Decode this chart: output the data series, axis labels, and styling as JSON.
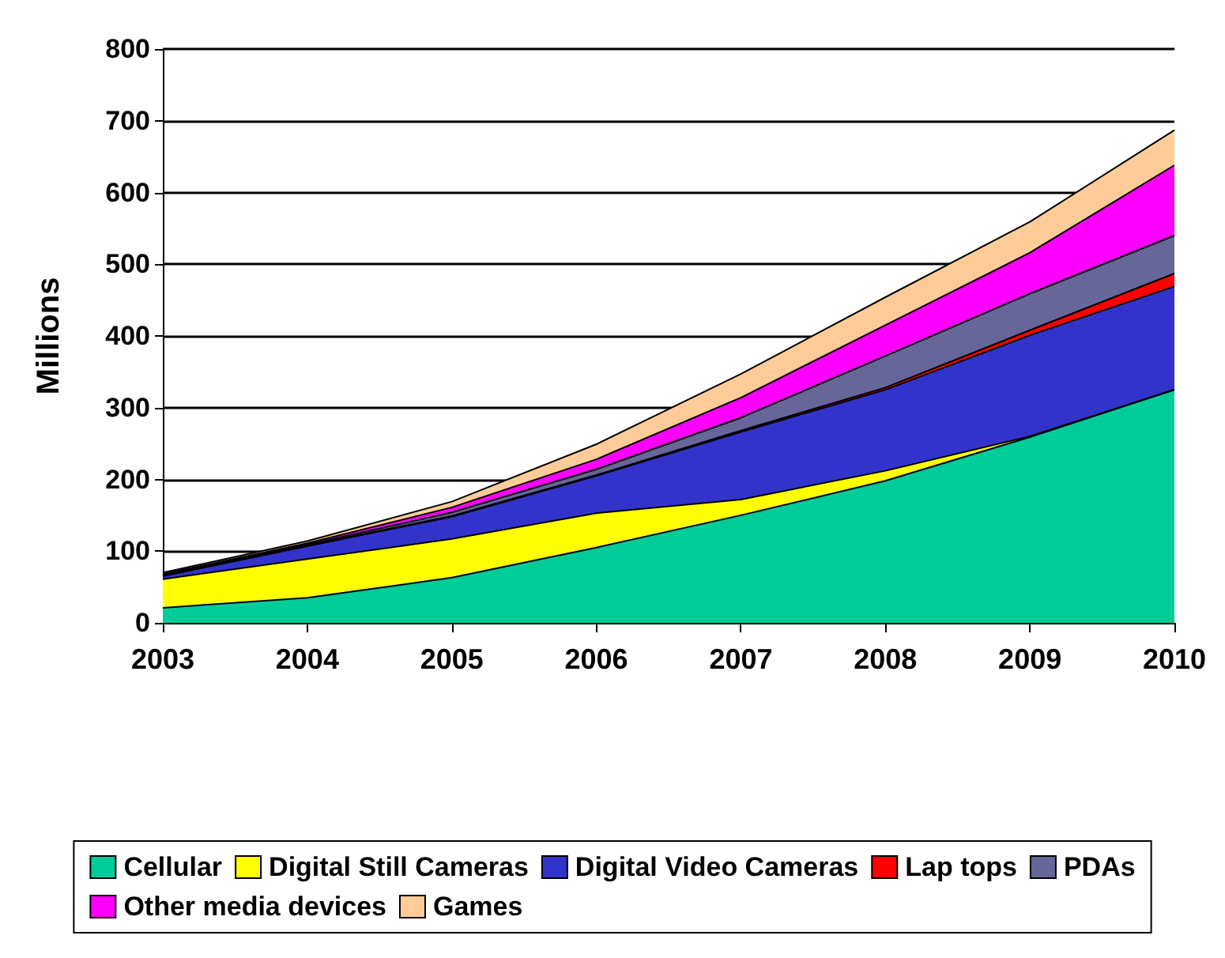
{
  "chart_data": {
    "type": "area",
    "ylabel": "Millions",
    "stacked": true,
    "x": [
      2003,
      2004,
      2005,
      2006,
      2007,
      2008,
      2009,
      2010
    ],
    "xlim": [
      2003,
      2010
    ],
    "xticks": [
      2003,
      2004,
      2005,
      2006,
      2007,
      2008,
      2009,
      2010
    ],
    "ylim": [
      0,
      800
    ],
    "yticks": [
      0,
      100,
      200,
      300,
      400,
      500,
      600,
      700,
      800
    ],
    "grid": "y",
    "legend": "bottom",
    "series": [
      {
        "name": "Cellular",
        "color": "#00cc99",
        "values": [
          21,
          35,
          63,
          105,
          150,
          198,
          259,
          325
        ]
      },
      {
        "name": "Digital Still Cameras",
        "color": "#ffff00",
        "values": [
          40,
          54,
          54,
          48,
          22,
          14,
          1,
          0
        ]
      },
      {
        "name": "Digital Video Cameras",
        "color": "#3333cc",
        "values": [
          4,
          18,
          31,
          52,
          94,
          113,
          141,
          144
        ]
      },
      {
        "name": "Lap tops",
        "color": "#ff0000",
        "values": [
          1,
          1,
          1,
          1,
          2,
          3,
          7,
          18
        ]
      },
      {
        "name": "PDAs",
        "color": "#666699",
        "values": [
          1,
          1,
          5,
          8,
          18,
          44,
          51,
          53
        ]
      },
      {
        "name": "Other media devices",
        "color": "#ff00ff",
        "values": [
          1,
          2,
          7,
          14,
          28,
          43,
          57,
          98
        ]
      },
      {
        "name": "Games",
        "color": "#ffcc99",
        "values": [
          2,
          3,
          8,
          21,
          33,
          39,
          43,
          49
        ]
      }
    ]
  }
}
